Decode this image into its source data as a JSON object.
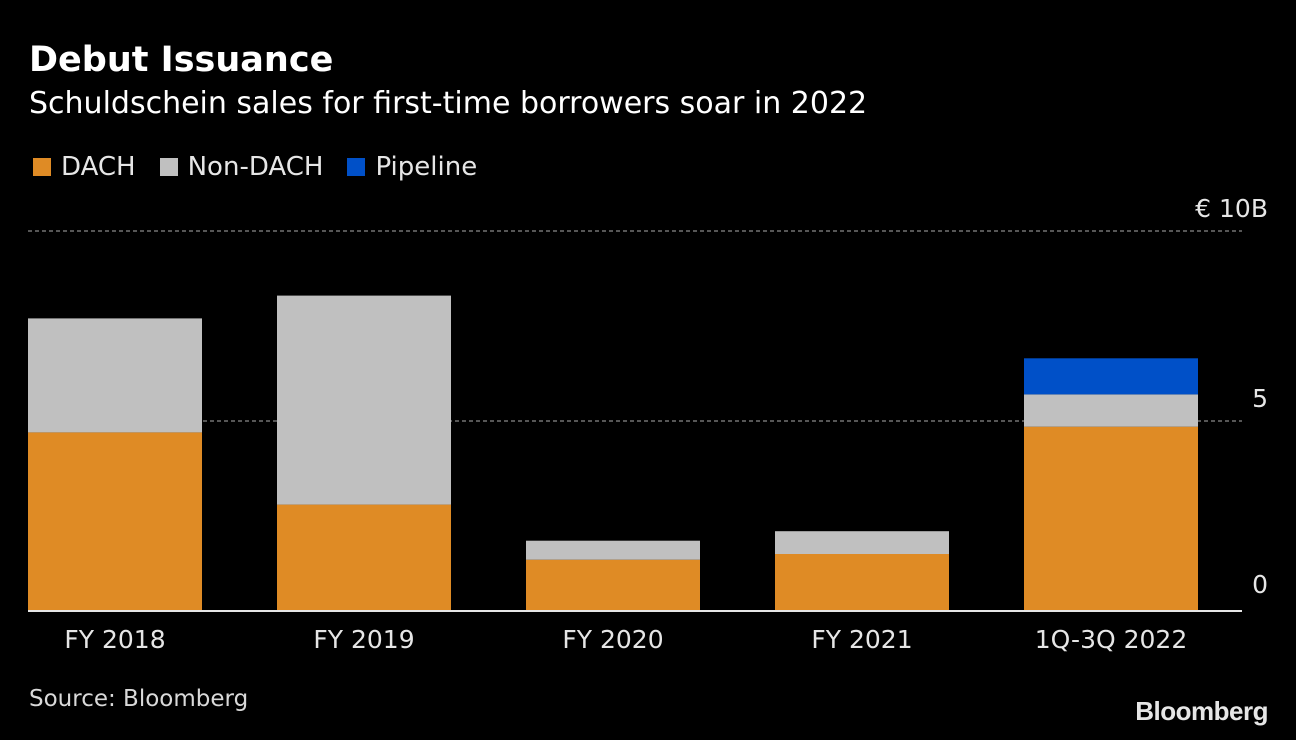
{
  "header": {
    "title": "Debut Issuance",
    "subtitle": "Schuldschein sales for first-time borrowers soar in 2022"
  },
  "legend": [
    {
      "label": "DACH",
      "color": "#df8b25"
    },
    {
      "label": "Non-DACH",
      "color": "#c0c0c0"
    },
    {
      "label": "Pipeline",
      "color": "#0050c8"
    }
  ],
  "footer": {
    "source": "Source: Bloomberg",
    "brand": "Bloomberg"
  },
  "chart_data": {
    "type": "bar",
    "stacked": true,
    "categories": [
      "FY 2018",
      "FY 2019",
      "FY 2020",
      "FY 2021",
      "1Q-3Q 2022"
    ],
    "series": [
      {
        "name": "DACH",
        "color": "#df8b25",
        "values": [
          4.7,
          2.8,
          1.35,
          1.5,
          4.85
        ]
      },
      {
        "name": "Non-DACH",
        "color": "#c0c0c0",
        "values": [
          3.0,
          5.5,
          0.5,
          0.6,
          0.85
        ]
      },
      {
        "name": "Pipeline",
        "color": "#0050c8",
        "values": [
          0,
          0,
          0,
          0,
          0.95
        ]
      }
    ],
    "ylim": [
      0,
      10
    ],
    "yticks": [
      {
        "value": 10,
        "label": "€ 10B"
      },
      {
        "value": 5,
        "label": "5"
      },
      {
        "value": 0,
        "label": "0"
      }
    ],
    "grid": true,
    "axis_side": "right",
    "legend_position": "top-left"
  }
}
